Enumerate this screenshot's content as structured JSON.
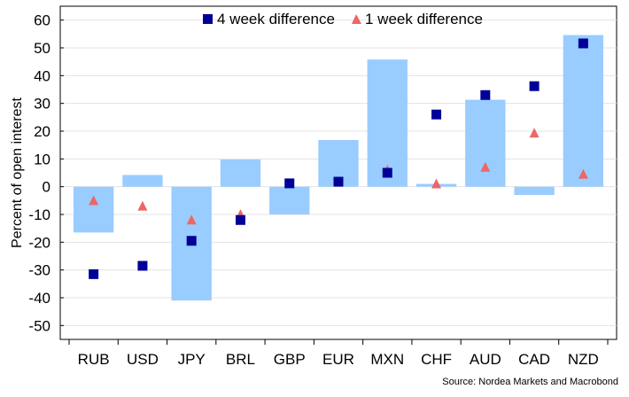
{
  "chart_data": {
    "type": "bar",
    "ylabel": "Percent of open interest",
    "ylim": [
      -55,
      65
    ],
    "yticks": [
      -50,
      -40,
      -30,
      -20,
      -10,
      0,
      10,
      20,
      30,
      40,
      50,
      60
    ],
    "grid": true,
    "legend_position": "top-center",
    "categories": [
      "RUB",
      "USD",
      "JPY",
      "BRL",
      "GBP",
      "EUR",
      "MXN",
      "CHF",
      "AUD",
      "CAD",
      "NZD"
    ],
    "bars": {
      "name": "",
      "color": "#99ccff",
      "values": [
        -16.5,
        4.2,
        -41,
        9.8,
        -10,
        16.8,
        45.8,
        1,
        31.3,
        -3,
        54.6
      ]
    },
    "series": [
      {
        "name": "4 week difference",
        "marker": "square",
        "color": "#000099",
        "values": [
          -31.5,
          -28.5,
          -19.5,
          -12,
          1.2,
          1.8,
          5,
          26,
          33,
          36.2,
          51.6
        ]
      },
      {
        "name": "1 week difference",
        "marker": "triangle",
        "color": "#ee6666",
        "values": [
          -5,
          -7,
          -12,
          -10,
          1.2,
          1.6,
          6,
          1,
          7,
          19.3,
          4.5
        ]
      }
    ],
    "source": "Source: Nordea Markets and Macrobond"
  }
}
